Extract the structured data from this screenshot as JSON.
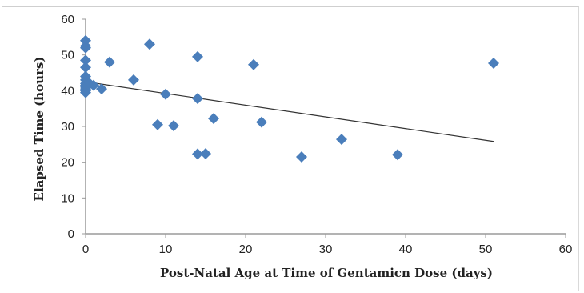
{
  "caption": "",
  "chart_data": {
    "type": "scatter",
    "title": "",
    "xlabel": "Post-Natal Age at Time of Gentamicn Dose (days)",
    "ylabel": "Elapsed Time (hours)",
    "xlim": [
      0,
      60
    ],
    "ylim": [
      0,
      60
    ],
    "xticks": [
      0,
      10,
      20,
      30,
      40,
      50,
      60
    ],
    "yticks": [
      0,
      10,
      20,
      30,
      40,
      50,
      60
    ],
    "grid": false,
    "legend": "none",
    "marker": "diamond",
    "marker_color": "#4a7ebb",
    "trendline": {
      "type": "linear",
      "x": [
        0,
        51
      ],
      "y": [
        42.5,
        25.8
      ],
      "color": "#333333"
    },
    "points": [
      [
        0,
        54.0
      ],
      [
        0,
        52.5
      ],
      [
        0,
        52.0
      ],
      [
        0,
        48.5
      ],
      [
        0,
        46.5
      ],
      [
        0,
        44.0
      ],
      [
        0,
        43.0
      ],
      [
        0,
        42.0
      ],
      [
        0,
        41.5
      ],
      [
        0,
        41.0
      ],
      [
        0,
        40.5
      ],
      [
        0,
        40.0
      ],
      [
        0,
        39.5
      ],
      [
        0.5,
        42.0
      ],
      [
        1,
        41.5
      ],
      [
        2,
        40.5
      ],
      [
        3,
        48.0
      ],
      [
        6,
        43.0
      ],
      [
        8,
        53.0
      ],
      [
        9,
        30.5
      ],
      [
        10,
        39.0
      ],
      [
        11,
        30.2
      ],
      [
        14,
        49.5
      ],
      [
        14,
        37.8
      ],
      [
        14,
        22.3
      ],
      [
        15,
        22.4
      ],
      [
        16,
        32.2
      ],
      [
        21,
        47.3
      ],
      [
        22,
        31.2
      ],
      [
        27,
        21.5
      ],
      [
        32,
        26.4
      ],
      [
        39,
        22.1
      ],
      [
        51,
        47.7
      ]
    ]
  }
}
